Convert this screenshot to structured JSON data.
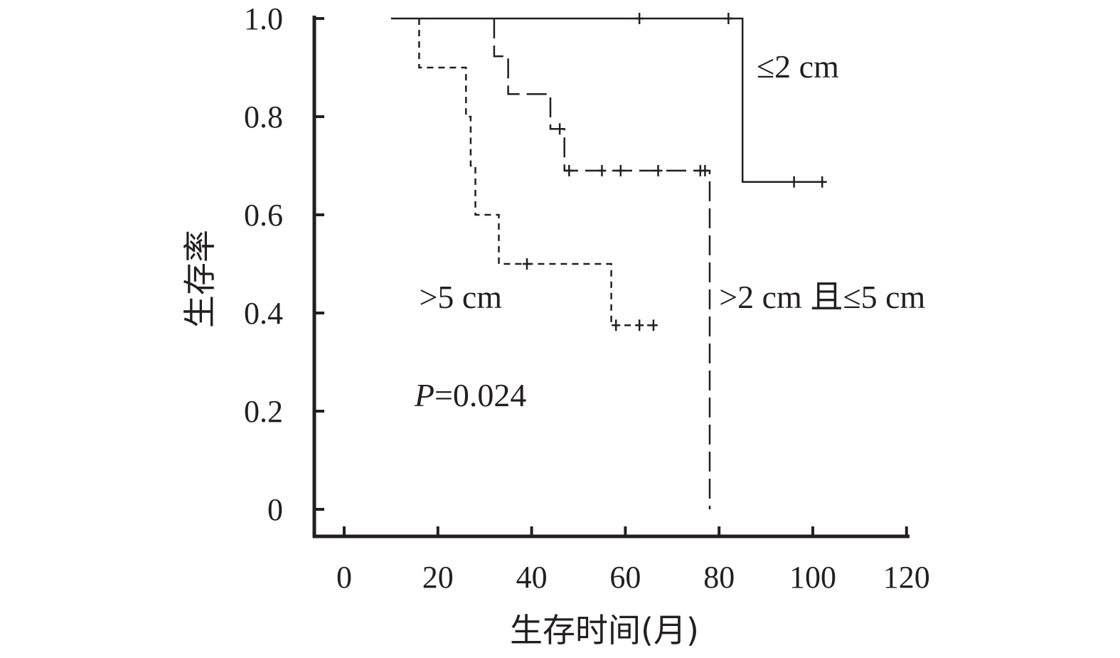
{
  "chart_data": {
    "type": "line",
    "subtype": "kaplan-meier-step",
    "title": "",
    "xlabel": "生存时间(月)",
    "ylabel": "生存率",
    "xlim": [
      0,
      120
    ],
    "ylim": [
      0,
      1.0
    ],
    "x_ticks": [
      0,
      20,
      40,
      60,
      80,
      100,
      120
    ],
    "y_ticks": [
      0,
      0.2,
      0.4,
      0.6,
      0.8,
      1.0
    ],
    "x_tick_labels": [
      "0",
      "20",
      "40",
      "60",
      "80",
      "100",
      "120"
    ],
    "y_tick_labels": [
      "0",
      "0.2",
      "0.4",
      "0.6",
      "0.8",
      "1.0"
    ],
    "grid": false,
    "series": [
      {
        "name": "≤2 cm",
        "line_style": "solid",
        "steps": [
          [
            10,
            1.0
          ],
          [
            85,
            1.0
          ],
          [
            85,
            0.667
          ],
          [
            103,
            0.667
          ]
        ],
        "censored": [
          [
            63,
            1.0
          ],
          [
            82,
            1.0
          ],
          [
            96,
            0.667
          ],
          [
            102,
            0.667
          ]
        ]
      },
      {
        "name": ">2 cm 且≤5 cm",
        "line_style": "long-dash",
        "steps": [
          [
            32,
            1.0
          ],
          [
            32,
            0.923
          ],
          [
            35,
            0.923
          ],
          [
            35,
            0.846
          ],
          [
            44,
            0.846
          ],
          [
            44,
            0.775
          ],
          [
            47,
            0.775
          ],
          [
            47,
            0.69
          ],
          [
            78,
            0.69
          ],
          [
            78,
            0.0
          ]
        ],
        "censored": [
          [
            46,
            0.775
          ],
          [
            48,
            0.69
          ],
          [
            55,
            0.69
          ],
          [
            59,
            0.69
          ],
          [
            67,
            0.69
          ],
          [
            76,
            0.69
          ],
          [
            77,
            0.69
          ]
        ]
      },
      {
        "name": ">5 cm",
        "line_style": "short-dash",
        "steps": [
          [
            16,
            1.0
          ],
          [
            16,
            0.9
          ],
          [
            26,
            0.9
          ],
          [
            26,
            0.8
          ],
          [
            27,
            0.8
          ],
          [
            27,
            0.7
          ],
          [
            28,
            0.7
          ],
          [
            28,
            0.6
          ],
          [
            33,
            0.6
          ],
          [
            33,
            0.5
          ],
          [
            57,
            0.5
          ],
          [
            57,
            0.375
          ],
          [
            67,
            0.375
          ]
        ],
        "censored": [
          [
            39,
            0.5
          ],
          [
            58,
            0.375
          ],
          [
            63,
            0.375
          ],
          [
            66,
            0.375
          ]
        ]
      }
    ],
    "annotations": [
      {
        "text": "≤2 cm",
        "at": [
          88,
          0.88
        ]
      },
      {
        "text": ">2 cm 且≤5 cm",
        "at": [
          80,
          0.41
        ]
      },
      {
        "text": ">5 cm",
        "at": [
          16,
          0.41
        ]
      }
    ],
    "p_value": {
      "label": "P",
      "value": "=0.024",
      "at": [
        15,
        0.21
      ]
    }
  }
}
